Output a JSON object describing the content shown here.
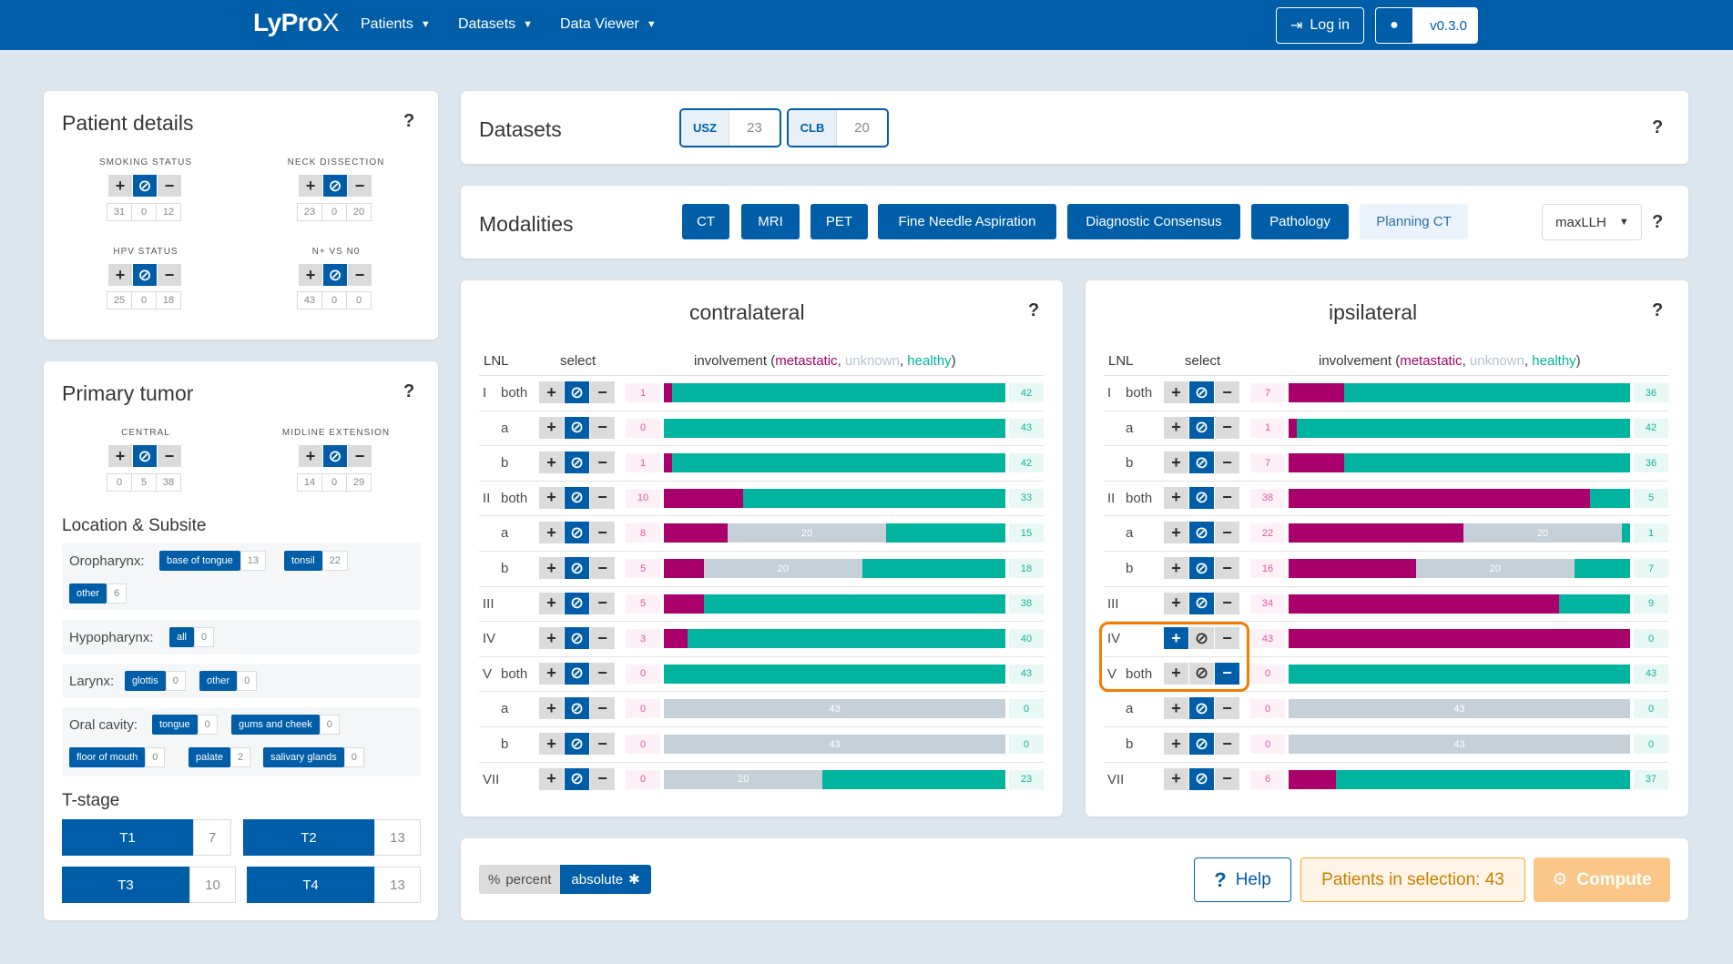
{
  "nav": {
    "logo_a": "LyPro",
    "logo_b": "X",
    "items": [
      "Patients",
      "Datasets",
      "Data Viewer"
    ],
    "login": "Log in",
    "version": "v0.3.0",
    "colors": {
      "primary": "#005ea8",
      "metastatic": "#a9006b",
      "healthy": "#00b4a0",
      "unknown": "#c5d0d8",
      "accent": "#f5a623"
    }
  },
  "patient": {
    "title": "Patient details",
    "help": "?",
    "groups": [
      {
        "label": "SMOKING STATUS",
        "counts": [
          "31",
          "0",
          "12"
        ],
        "active": 1
      },
      {
        "label": "NECK DISSECTION",
        "counts": [
          "23",
          "0",
          "20"
        ],
        "active": 1
      },
      {
        "label": "HPV STATUS",
        "counts": [
          "25",
          "0",
          "18"
        ],
        "active": 1
      },
      {
        "label": "N+ VS N0",
        "counts": [
          "43",
          "0",
          "0"
        ],
        "active": 1
      }
    ]
  },
  "tumor": {
    "title": "Primary tumor",
    "help": "?",
    "groups": [
      {
        "label": "CENTRAL",
        "counts": [
          "0",
          "5",
          "38"
        ],
        "active": 1
      },
      {
        "label": "MIDLINE EXTENSION",
        "counts": [
          "14",
          "0",
          "29"
        ],
        "active": 1
      }
    ],
    "location_title": "Location & Subsite",
    "oro": {
      "label": "Oropharynx:",
      "tags": [
        {
          "t": "base of tongue",
          "n": "13"
        },
        {
          "t": "tonsil",
          "n": "22"
        },
        {
          "t": "other",
          "n": "6"
        }
      ]
    },
    "hypo": {
      "label": "Hypopharynx:",
      "tags": [
        {
          "t": "all",
          "n": "0"
        }
      ]
    },
    "larynx": {
      "label": "Larynx:",
      "tags": [
        {
          "t": "glottis",
          "n": "0"
        },
        {
          "t": "other",
          "n": "0"
        }
      ]
    },
    "oral": {
      "label": "Oral cavity:",
      "tags": [
        {
          "t": "tongue",
          "n": "0"
        },
        {
          "t": "gums and cheek",
          "n": "0"
        },
        {
          "t": "floor of mouth",
          "n": "0"
        },
        {
          "t": "palate",
          "n": "2"
        },
        {
          "t": "salivary glands",
          "n": "0"
        }
      ]
    },
    "tstage_title": "T-stage",
    "tstages": [
      {
        "t": "T1",
        "n": "7"
      },
      {
        "t": "T2",
        "n": "13"
      },
      {
        "t": "T3",
        "n": "10"
      },
      {
        "t": "T4",
        "n": "13"
      }
    ]
  },
  "datasets": {
    "title": "Datasets",
    "help": "?",
    "items": [
      {
        "name": "USZ",
        "n": "23"
      },
      {
        "name": "CLB",
        "n": "20"
      }
    ]
  },
  "modalities": {
    "title": "Modalities",
    "help": "?",
    "items": [
      "CT",
      "MRI",
      "PET",
      "Fine Needle Aspiration",
      "Diagnostic Consensus",
      "Pathology",
      "Planning CT"
    ],
    "method": "maxLLH"
  },
  "table_header": {
    "lnl": "LNL",
    "select": "select",
    "involvement": "involvement (",
    "metastatic": "metastatic",
    "unknown": "unknown",
    "healthy": "healthy",
    "sep": ", ",
    "close": ")"
  },
  "contra": {
    "title": "contralateral",
    "help": "?",
    "total": 43,
    "rows": [
      {
        "lnl": "I",
        "sub": "both",
        "m": 1,
        "u": 0,
        "h": 42,
        "ulabel": "",
        "sel": 1
      },
      {
        "lnl": "",
        "sub": "a",
        "m": 0,
        "u": 0,
        "h": 43,
        "ulabel": "",
        "sel": 1
      },
      {
        "lnl": "",
        "sub": "b",
        "m": 1,
        "u": 0,
        "h": 42,
        "ulabel": "",
        "sel": 1
      },
      {
        "lnl": "II",
        "sub": "both",
        "m": 10,
        "u": 0,
        "h": 33,
        "ulabel": "",
        "sel": 1
      },
      {
        "lnl": "",
        "sub": "a",
        "m": 8,
        "u": 20,
        "h": 15,
        "ulabel": "20",
        "sel": 1
      },
      {
        "lnl": "",
        "sub": "b",
        "m": 5,
        "u": 20,
        "h": 18,
        "ulabel": "20",
        "sel": 1
      },
      {
        "lnl": "III",
        "sub": "",
        "m": 5,
        "u": 0,
        "h": 38,
        "ulabel": "",
        "sel": 1
      },
      {
        "lnl": "IV",
        "sub": "",
        "m": 3,
        "u": 0,
        "h": 40,
        "ulabel": "",
        "sel": 1
      },
      {
        "lnl": "V",
        "sub": "both",
        "m": 0,
        "u": 0,
        "h": 43,
        "ulabel": "",
        "sel": 1
      },
      {
        "lnl": "",
        "sub": "a",
        "m": 0,
        "u": 43,
        "h": 0,
        "ulabel": "43",
        "sel": 1
      },
      {
        "lnl": "",
        "sub": "b",
        "m": 0,
        "u": 43,
        "h": 0,
        "ulabel": "43",
        "sel": 1
      },
      {
        "lnl": "VII",
        "sub": "",
        "m": 0,
        "u": 20,
        "h": 23,
        "ulabel": "20",
        "sel": 1
      }
    ]
  },
  "ipsi": {
    "title": "ipsilateral",
    "help": "?",
    "total": 43,
    "rows": [
      {
        "lnl": "I",
        "sub": "both",
        "m": 7,
        "u": 0,
        "h": 36,
        "ulabel": "",
        "sel": 1
      },
      {
        "lnl": "",
        "sub": "a",
        "m": 1,
        "u": 0,
        "h": 42,
        "ulabel": "",
        "sel": 1
      },
      {
        "lnl": "",
        "sub": "b",
        "m": 7,
        "u": 0,
        "h": 36,
        "ulabel": "",
        "sel": 1
      },
      {
        "lnl": "II",
        "sub": "both",
        "m": 38,
        "u": 0,
        "h": 5,
        "ulabel": "",
        "sel": 1
      },
      {
        "lnl": "",
        "sub": "a",
        "m": 22,
        "u": 20,
        "h": 1,
        "ulabel": "20",
        "sel": 1
      },
      {
        "lnl": "",
        "sub": "b",
        "m": 16,
        "u": 20,
        "h": 7,
        "ulabel": "20",
        "sel": 1
      },
      {
        "lnl": "III",
        "sub": "",
        "m": 34,
        "u": 0,
        "h": 9,
        "ulabel": "",
        "sel": 1
      },
      {
        "lnl": "IV",
        "sub": "",
        "m": 43,
        "u": 0,
        "h": 0,
        "ulabel": "",
        "sel": 0
      },
      {
        "lnl": "V",
        "sub": "both",
        "m": 0,
        "u": 0,
        "h": 43,
        "ulabel": "",
        "sel": 2
      },
      {
        "lnl": "",
        "sub": "a",
        "m": 0,
        "u": 43,
        "h": 0,
        "ulabel": "43",
        "sel": 1
      },
      {
        "lnl": "",
        "sub": "b",
        "m": 0,
        "u": 43,
        "h": 0,
        "ulabel": "43",
        "sel": 1
      },
      {
        "lnl": "VII",
        "sub": "",
        "m": 6,
        "u": 0,
        "h": 37,
        "ulabel": "",
        "sel": 1
      }
    ]
  },
  "footer": {
    "percent": "percent",
    "absolute": "absolute",
    "help": "Help",
    "selection": "Patients in selection: 43",
    "compute": "Compute"
  }
}
